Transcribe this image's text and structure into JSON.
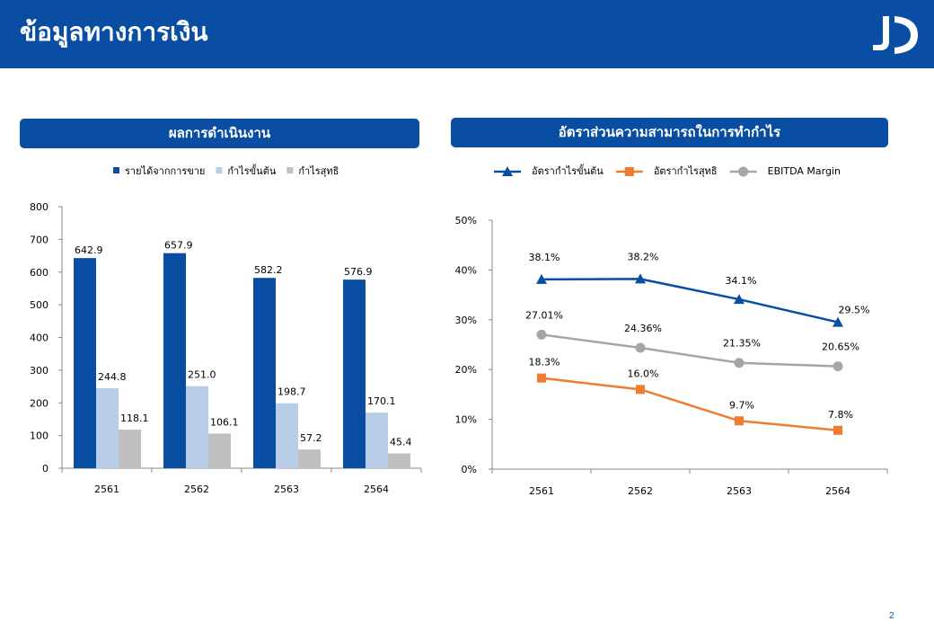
{
  "header": {
    "title": "ข้อมูลทางการเงิน"
  },
  "footer": {
    "page_number": "2"
  },
  "colors": {
    "header_bg": "#0a4ea3",
    "bar_revenue": "#0a4ea3",
    "bar_gross": "#b7cde8",
    "bar_net": "#bfbfbf",
    "line_gross": "#0a4ea3",
    "line_net": "#ed7d31",
    "line_ebitda": "#a6a6a6"
  },
  "chart_data": [
    {
      "type": "bar",
      "title": "ผลการดำเนินงาน",
      "categories": [
        "2561",
        "2562",
        "2563",
        "2564"
      ],
      "series": [
        {
          "name": "รายได้จากการขาย",
          "values": [
            642.9,
            657.9,
            582.2,
            576.9
          ],
          "labels": [
            "642.9",
            "657.9",
            "582.2",
            "576.9"
          ]
        },
        {
          "name": "กำไรขั้นต้น",
          "values": [
            244.8,
            251.0,
            198.7,
            170.1
          ],
          "labels": [
            "244.8",
            "251.0",
            "198.7",
            "170.1"
          ]
        },
        {
          "name": "กำไรสุทธิ",
          "values": [
            118.1,
            106.1,
            57.2,
            45.4
          ],
          "labels": [
            "118.1",
            "106.1",
            "57.2",
            "45.4"
          ]
        }
      ],
      "ylim": [
        0,
        800
      ],
      "yticks": [
        "0",
        "100",
        "200",
        "300",
        "400",
        "500",
        "600",
        "700",
        "800"
      ],
      "legend": "top",
      "grid": false
    },
    {
      "type": "line",
      "title": "อัตราส่วนความสามารถในการทำกำไร",
      "categories": [
        "2561",
        "2562",
        "2563",
        "2564"
      ],
      "series": [
        {
          "name": "อัตรากำไรขั้นต้น",
          "values": [
            38.1,
            38.2,
            34.1,
            29.5
          ],
          "labels": [
            "38.1%",
            "38.2%",
            "34.1%",
            "29.5%"
          ],
          "marker": "triangle"
        },
        {
          "name": "อัตรากำไรสุทธิ",
          "values": [
            18.3,
            16.0,
            9.7,
            7.8
          ],
          "labels": [
            "18.3%",
            "16.0%",
            "9.7%",
            "7.8%"
          ],
          "marker": "square"
        },
        {
          "name": "EBITDA Margin",
          "values": [
            27.01,
            24.36,
            21.35,
            20.65
          ],
          "labels": [
            "27.01%",
            "24.36%",
            "21.35%",
            "20.65%"
          ],
          "marker": "circle"
        }
      ],
      "ylim": [
        0,
        50
      ],
      "yticks": [
        "0%",
        "10%",
        "20%",
        "30%",
        "40%",
        "50%"
      ],
      "legend": "top",
      "grid": false
    }
  ]
}
